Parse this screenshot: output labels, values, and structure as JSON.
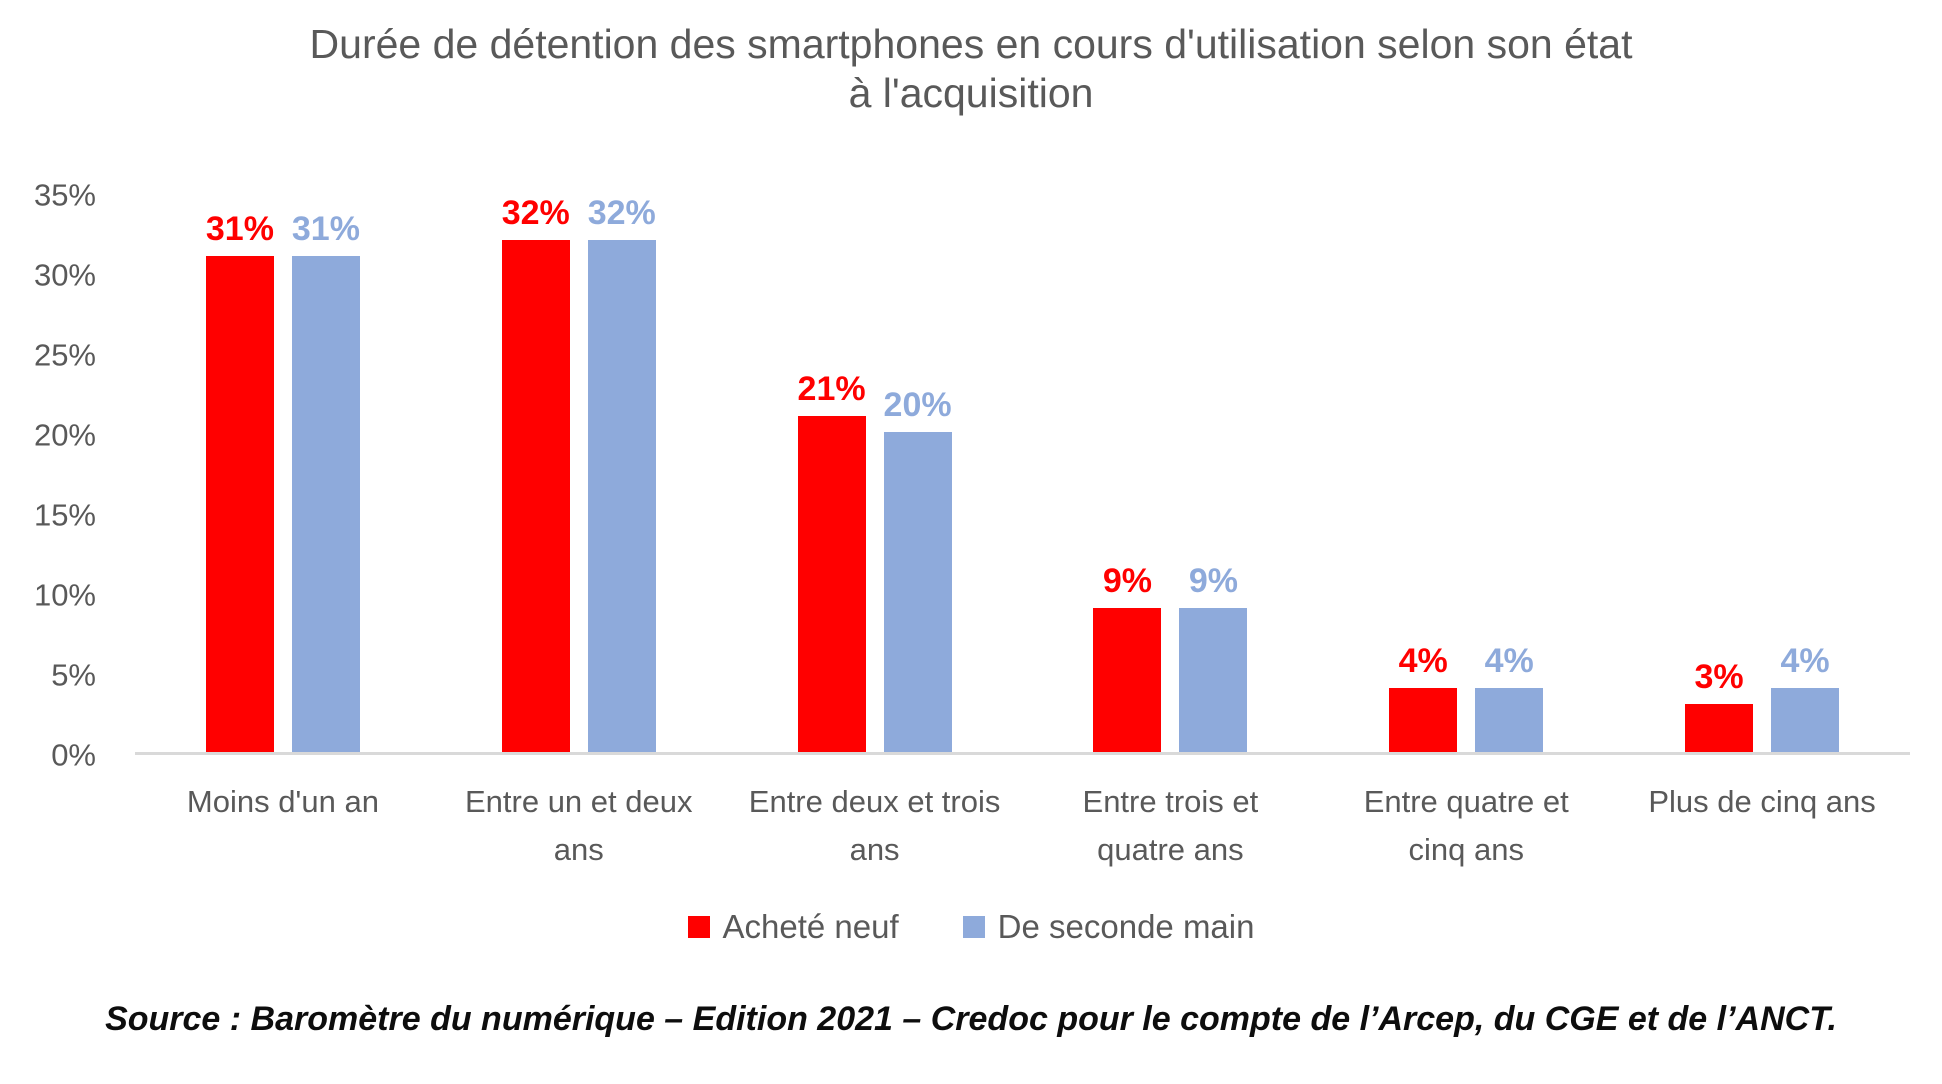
{
  "chart_data": {
    "type": "bar",
    "title": "Durée de détention des smartphones en cours d'utilisation selon son état\nà l'acquisition",
    "categories": [
      "Moins d'un an",
      "Entre un et deux\nans",
      "Entre deux et trois\nans",
      "Entre trois et\nquatre ans",
      "Entre quatre et\ncinq ans",
      "Plus de cinq ans"
    ],
    "series": [
      {
        "name": "Acheté neuf",
        "color": "#FF0000",
        "values": [
          31,
          32,
          21,
          9,
          4,
          3
        ]
      },
      {
        "name": "De seconde main",
        "color": "#8EAADB",
        "values": [
          31,
          32,
          20,
          9,
          4,
          4
        ]
      }
    ],
    "value_suffix": "%",
    "ylim": [
      0,
      35
    ],
    "ytick_step": 5,
    "yticks": [
      "0%",
      "5%",
      "10%",
      "15%",
      "20%",
      "25%",
      "30%",
      "35%"
    ],
    "grid": false,
    "legend_position": "bottom"
  },
  "source": "Source : Baromètre du numérique – Edition 2021 – Credoc pour le compte de l’Arcep, du CGE et de l’ANCT.",
  "colors": {
    "title_text": "#595959",
    "axis_text": "#595959",
    "axis_line": "#D9D9D9",
    "series_new": "#FF0000",
    "series_second_hand": "#8EAADB"
  }
}
